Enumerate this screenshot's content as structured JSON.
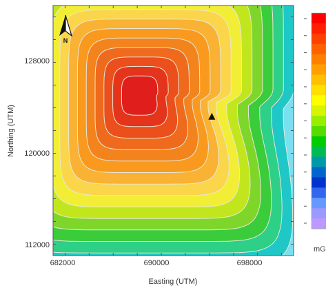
{
  "map": {
    "xlabel": "Easting (UTM)",
    "ylabel": "Northing (UTM)",
    "x_ticks": [
      "682000",
      "690000",
      "698000"
    ],
    "y_ticks": [
      "128000",
      "120000",
      "112000"
    ],
    "x_range": [
      681000,
      701000
    ],
    "y_range": [
      111000,
      133000
    ],
    "north_arrow_label": "N",
    "colorbar_unit_label": "mG",
    "marker": {
      "easting": 694200,
      "northing": 123200,
      "icon": "triangle-marker-icon"
    },
    "contour_fill_colors": [
      "#ffffff",
      "#7ae0f0",
      "#1fc7c7",
      "#2ecf86",
      "#3bcc3b",
      "#7fd62a",
      "#c2e61e",
      "#f2ee36",
      "#fbd54a",
      "#f9b234",
      "#f99a1f",
      "#f3831d",
      "#ef6a1c",
      "#ea4f1c",
      "#e5341c",
      "#e01f1c"
    ],
    "contour_line_color": "#e8e8d8",
    "colorbar_colors": [
      "#ff0000",
      "#ff2000",
      "#ff4000",
      "#ff6000",
      "#ff8000",
      "#ffa000",
      "#ffc000",
      "#ffe000",
      "#ffff00",
      "#d6f500",
      "#99ee00",
      "#55dd00",
      "#00cc00",
      "#00bb55",
      "#0099aa",
      "#0066cc",
      "#0033cc",
      "#3366ee",
      "#6699ff",
      "#9999ff",
      "#bb99ff"
    ]
  }
}
